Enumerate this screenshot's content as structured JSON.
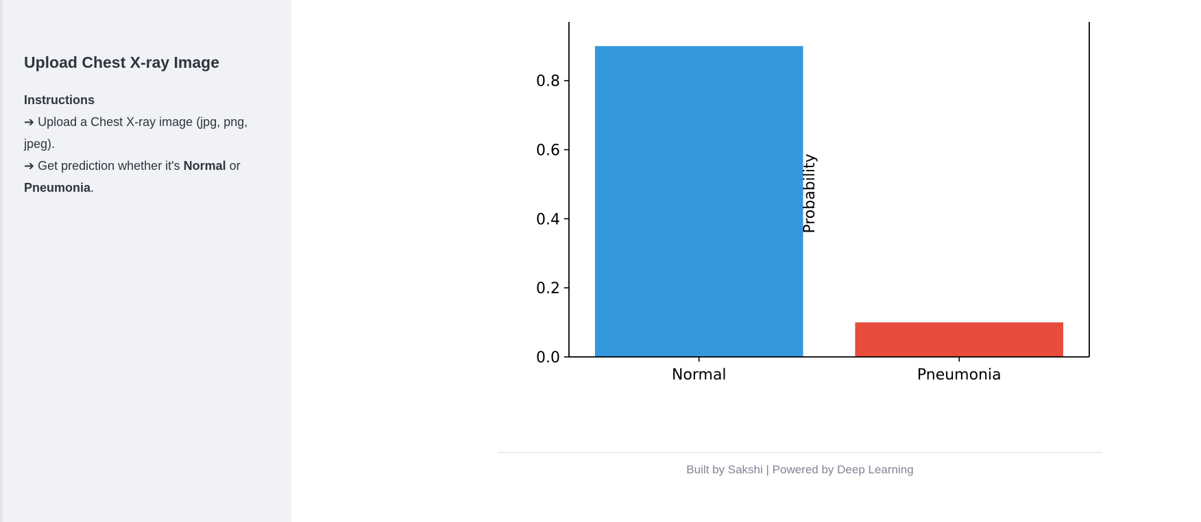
{
  "sidebar": {
    "title": "Upload Chest X-ray Image",
    "instructions_heading": "Instructions",
    "line1": "➔ Upload a Chest X-ray image (jpg, png, jpeg).",
    "line2_prefix": "➔ Get prediction whether it's ",
    "line2_normal": "Normal",
    "line2_or": " or ",
    "line2_pneumonia": "Pneumonia",
    "line2_suffix": "."
  },
  "chart_data": {
    "type": "bar",
    "categories": [
      "Normal",
      "Pneumonia"
    ],
    "values": [
      0.9,
      0.1
    ],
    "colors": [
      "#3598db",
      "#e74c3c"
    ],
    "ylabel": "Probability",
    "xlabel": "",
    "ylim": [
      0,
      0.97
    ],
    "yticks": [
      0.0,
      0.2,
      0.4,
      0.6,
      0.8
    ],
    "ytick_labels": [
      "0.0",
      "0.2",
      "0.4",
      "0.6",
      "0.8"
    ],
    "grid": false
  },
  "footer": {
    "text": "Built by Sakshi | Powered by Deep Learning"
  }
}
